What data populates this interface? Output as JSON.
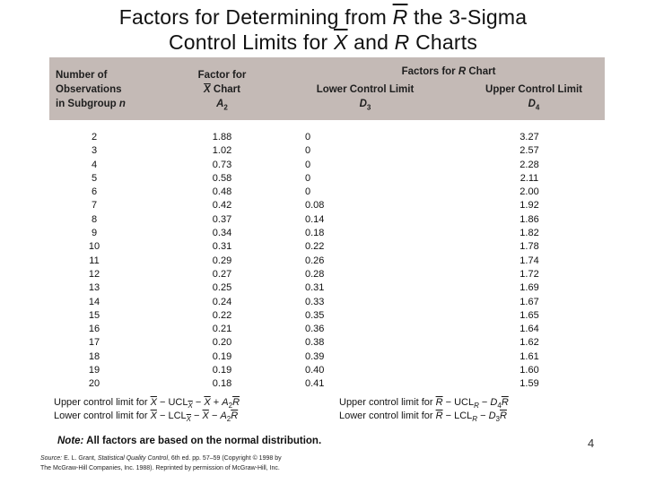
{
  "slide": {
    "page_number": "4"
  },
  "title": {
    "line1_pre": "Factors for Determining from ",
    "line1_rbar": "R",
    "line1_post": " the 3-Sigma",
    "line2_pre": "Control Limits for ",
    "line2_xbar": "X",
    "line2_mid": " and ",
    "line2_r": "R",
    "line2_post": " Charts"
  },
  "table": {
    "header": {
      "col1_line1": "Number of",
      "col1_line2": "Observations",
      "col1_line3_pre": "in Subgroup ",
      "col1_line3_n": "n",
      "col2_line1": "Factor for",
      "col2_line2_x": "X",
      "col2_line2_post": " Chart",
      "col2_sym": "A",
      "col2_sub": "2",
      "rchart_group_pre": "Factors for ",
      "rchart_group_r": "R",
      "rchart_group_post": " Chart",
      "col3_line1": "Lower Control Limit",
      "col3_sym": "D",
      "col3_sub": "3",
      "col4_line1": "Upper Control Limit",
      "col4_sym": "D",
      "col4_sub": "4"
    },
    "rows": [
      [
        "2",
        "1.88",
        "0",
        "3.27"
      ],
      [
        "3",
        "1.02",
        "0",
        "2.57"
      ],
      [
        "4",
        "0.73",
        "0",
        "2.28"
      ],
      [
        "5",
        "0.58",
        "0",
        "2.11"
      ],
      [
        "6",
        "0.48",
        "0",
        "2.00"
      ],
      [
        "7",
        "0.42",
        "0.08",
        "1.92"
      ],
      [
        "8",
        "0.37",
        "0.14",
        "1.86"
      ],
      [
        "9",
        "0.34",
        "0.18",
        "1.82"
      ],
      [
        "10",
        "0.31",
        "0.22",
        "1.78"
      ],
      [
        "11",
        "0.29",
        "0.26",
        "1.74"
      ],
      [
        "12",
        "0.27",
        "0.28",
        "1.72"
      ],
      [
        "13",
        "0.25",
        "0.31",
        "1.69"
      ],
      [
        "14",
        "0.24",
        "0.33",
        "1.67"
      ],
      [
        "15",
        "0.22",
        "0.35",
        "1.65"
      ],
      [
        "16",
        "0.21",
        "0.36",
        "1.64"
      ],
      [
        "17",
        "0.20",
        "0.38",
        "1.62"
      ],
      [
        "18",
        "0.19",
        "0.39",
        "1.61"
      ],
      [
        "19",
        "0.19",
        "0.40",
        "1.60"
      ],
      [
        "20",
        "0.18",
        "0.41",
        "1.59"
      ]
    ]
  },
  "formulas": {
    "xbar_upper": {
      "label": "Upper control limit for ",
      "x1": "X",
      "mid1": " − UCL",
      "sub1": "X",
      "mid2": " − ",
      "x2": "X",
      "op": " + ",
      "coef": "A",
      "coef_sub": "2",
      "rbar": "R"
    },
    "xbar_lower": {
      "label": "Lower control limit for ",
      "x1": "X",
      "mid1": " − LCL",
      "sub1": "X",
      "mid2": " − ",
      "x2": "X",
      "op": " − ",
      "coef": "A",
      "coef_sub": "2",
      "rbar": "R"
    },
    "r_upper": {
      "label": "Upper control limit for ",
      "r1": "R",
      "mid1": " − UCL",
      "sub1": "R",
      "mid2": " − ",
      "coef": "D",
      "coef_sub": "4",
      "rbar": "R"
    },
    "r_lower": {
      "label": "Lower control limit for ",
      "r1": "R",
      "mid1": " − LCL",
      "sub1": "R",
      "mid2": " − ",
      "coef": "D",
      "coef_sub": "3",
      "rbar": "R"
    }
  },
  "note": {
    "prefix": "Note:",
    "text": " All factors are based on the normal distribution."
  },
  "source": {
    "line1_label": "Source:",
    "line1_a": " E. L. Grant, ",
    "line1_title": "Statistical Quality Control",
    "line1_b": ", 6th ed. pp. 57–59 (Copyright © 1998 by",
    "line2": "The McGraw-Hill Companies, Inc. 1988). Reprinted by permission of McGraw-Hill, Inc."
  },
  "colors": {
    "header_band": "#c4bab6"
  }
}
